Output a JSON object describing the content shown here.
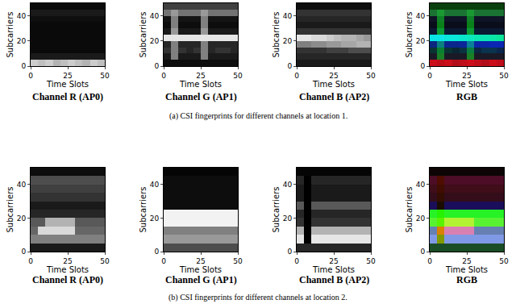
{
  "chart_data": {
    "type": "heatmap",
    "x_label": "Time Slots",
    "y_label": "Subcarriers",
    "xlim": [
      0,
      50
    ],
    "ylim": [
      0,
      50
    ],
    "xticks": [
      0,
      25,
      50
    ],
    "yticks": [
      0,
      20,
      40
    ],
    "zlim": [
      0,
      1
    ],
    "x_edges": [
      0,
      5,
      10,
      15,
      20,
      25,
      30,
      35,
      40,
      45,
      50
    ],
    "y_edges": [
      0,
      5,
      10,
      15,
      20,
      25,
      30,
      35,
      40,
      45,
      50
    ],
    "rows": [
      {
        "caption": "(a) CSI fingerprints for different channels at location 1.",
        "panels": [
          {
            "title": "Channel R (AP0)",
            "cells": [
              [
                0.8,
                0.75,
                0.8,
                0.7,
                0.75,
                0.8,
                0.75,
                0.7,
                0.8,
                0.75
              ],
              [
                0.1,
                0.1,
                0.1,
                0.1,
                0.1,
                0.1,
                0.1,
                0.1,
                0.1,
                0.1
              ],
              [
                0.04,
                0.04,
                0.04,
                0.04,
                0.04,
                0.04,
                0.04,
                0.04,
                0.04,
                0.04
              ],
              [
                0.04,
                0.04,
                0.04,
                0.04,
                0.04,
                0.04,
                0.04,
                0.04,
                0.04,
                0.04
              ],
              [
                0.04,
                0.04,
                0.04,
                0.04,
                0.04,
                0.04,
                0.04,
                0.04,
                0.04,
                0.04
              ],
              [
                0.04,
                0.04,
                0.04,
                0.04,
                0.04,
                0.04,
                0.04,
                0.04,
                0.04,
                0.04
              ],
              [
                0.04,
                0.04,
                0.04,
                0.04,
                0.04,
                0.04,
                0.04,
                0.04,
                0.04,
                0.04
              ],
              [
                0.06,
                0.06,
                0.06,
                0.06,
                0.06,
                0.06,
                0.06,
                0.06,
                0.06,
                0.06
              ],
              [
                0.1,
                0.1,
                0.1,
                0.1,
                0.1,
                0.1,
                0.1,
                0.1,
                0.1,
                0.1
              ],
              [
                0.04,
                0.04,
                0.04,
                0.04,
                0.04,
                0.04,
                0.04,
                0.04,
                0.04,
                0.04
              ]
            ]
          },
          {
            "title": "Channel G (AP1)",
            "cells": [
              [
                0.05,
                0.05,
                0.05,
                0.05,
                0.05,
                0.05,
                0.05,
                0.05,
                0.05,
                0.05
              ],
              [
                0.1,
                0.5,
                0.1,
                0.1,
                0.1,
                0.5,
                0.1,
                0.1,
                0.1,
                0.1
              ],
              [
                0.2,
                0.5,
                0.2,
                0.15,
                0.2,
                0.5,
                0.15,
                0.2,
                0.2,
                0.15
              ],
              [
                0.15,
                0.5,
                0.15,
                0.15,
                0.15,
                0.5,
                0.15,
                0.15,
                0.15,
                0.15
              ],
              [
                0.9,
                0.9,
                0.9,
                0.9,
                0.9,
                0.9,
                0.9,
                0.9,
                0.9,
                0.9
              ],
              [
                0.1,
                0.6,
                0.1,
                0.1,
                0.1,
                0.6,
                0.1,
                0.1,
                0.1,
                0.1
              ],
              [
                0.05,
                0.5,
                0.05,
                0.05,
                0.05,
                0.5,
                0.05,
                0.05,
                0.05,
                0.05
              ],
              [
                0.08,
                0.5,
                0.08,
                0.08,
                0.08,
                0.5,
                0.08,
                0.08,
                0.08,
                0.08
              ],
              [
                0.45,
                0.6,
                0.45,
                0.45,
                0.45,
                0.6,
                0.45,
                0.45,
                0.45,
                0.45
              ],
              [
                0.25,
                0.25,
                0.25,
                0.25,
                0.25,
                0.25,
                0.25,
                0.25,
                0.25,
                0.25
              ]
            ]
          },
          {
            "title": "Channel B (AP2)",
            "cells": [
              [
                0.1,
                0.1,
                0.1,
                0.1,
                0.1,
                0.1,
                0.1,
                0.1,
                0.1,
                0.1
              ],
              [
                0.15,
                0.15,
                0.15,
                0.15,
                0.15,
                0.15,
                0.15,
                0.15,
                0.15,
                0.15
              ],
              [
                0.2,
                0.2,
                0.2,
                0.2,
                0.25,
                0.25,
                0.25,
                0.3,
                0.3,
                0.3
              ],
              [
                0.5,
                0.5,
                0.55,
                0.55,
                0.6,
                0.6,
                0.65,
                0.65,
                0.7,
                0.7
              ],
              [
                0.9,
                0.9,
                0.85,
                0.85,
                0.8,
                0.75,
                0.7,
                0.7,
                0.65,
                0.6
              ],
              [
                0.2,
                0.2,
                0.2,
                0.2,
                0.2,
                0.2,
                0.2,
                0.2,
                0.2,
                0.2
              ],
              [
                0.1,
                0.1,
                0.1,
                0.1,
                0.1,
                0.1,
                0.1,
                0.1,
                0.1,
                0.1
              ],
              [
                0.15,
                0.15,
                0.15,
                0.15,
                0.15,
                0.15,
                0.15,
                0.15,
                0.15,
                0.15
              ],
              [
                0.2,
                0.2,
                0.2,
                0.2,
                0.2,
                0.2,
                0.2,
                0.2,
                0.2,
                0.2
              ],
              [
                0.05,
                0.05,
                0.05,
                0.05,
                0.05,
                0.05,
                0.05,
                0.05,
                0.05,
                0.05
              ]
            ]
          },
          {
            "title": "RGB",
            "type": "rgb"
          }
        ]
      },
      {
        "caption": "(b) CSI fingerprints for different channels at location 2.",
        "panels": [
          {
            "title": "Channel R (AP0)",
            "cells": [
              [
                0.1,
                0.1,
                0.1,
                0.1,
                0.1,
                0.1,
                0.1,
                0.1,
                0.1,
                0.1
              ],
              [
                0.5,
                0.5,
                0.5,
                0.5,
                0.5,
                0.5,
                0.5,
                0.5,
                0.5,
                0.5
              ],
              [
                0.4,
                0.85,
                0.85,
                0.85,
                0.85,
                0.85,
                0.4,
                0.4,
                0.4,
                0.4
              ],
              [
                0.35,
                0.35,
                0.7,
                0.7,
                0.7,
                0.7,
                0.35,
                0.35,
                0.35,
                0.35
              ],
              [
                0.15,
                0.15,
                0.15,
                0.15,
                0.15,
                0.15,
                0.15,
                0.15,
                0.15,
                0.15
              ],
              [
                0.1,
                0.1,
                0.1,
                0.1,
                0.1,
                0.1,
                0.1,
                0.1,
                0.1,
                0.1
              ],
              [
                0.2,
                0.2,
                0.2,
                0.2,
                0.2,
                0.2,
                0.2,
                0.2,
                0.2,
                0.2
              ],
              [
                0.25,
                0.25,
                0.25,
                0.25,
                0.25,
                0.25,
                0.25,
                0.25,
                0.25,
                0.25
              ],
              [
                0.3,
                0.3,
                0.3,
                0.3,
                0.3,
                0.3,
                0.3,
                0.3,
                0.3,
                0.3
              ],
              [
                0.05,
                0.05,
                0.05,
                0.05,
                0.05,
                0.05,
                0.05,
                0.05,
                0.05,
                0.05
              ]
            ]
          },
          {
            "title": "Channel G (AP1)",
            "cells": [
              [
                0.3,
                0.3,
                0.3,
                0.3,
                0.3,
                0.3,
                0.3,
                0.3,
                0.3,
                0.3
              ],
              [
                0.6,
                0.6,
                0.6,
                0.6,
                0.6,
                0.6,
                0.6,
                0.6,
                0.6,
                0.6
              ],
              [
                0.5,
                0.5,
                0.5,
                0.5,
                0.5,
                0.5,
                0.5,
                0.5,
                0.5,
                0.5
              ],
              [
                0.95,
                0.95,
                0.95,
                0.95,
                0.95,
                0.95,
                0.95,
                0.95,
                0.95,
                0.95
              ],
              [
                0.95,
                0.95,
                0.95,
                0.95,
                0.95,
                0.95,
                0.95,
                0.95,
                0.95,
                0.95
              ],
              [
                0.05,
                0.05,
                0.05,
                0.05,
                0.05,
                0.05,
                0.05,
                0.05,
                0.05,
                0.05
              ],
              [
                0.05,
                0.05,
                0.05,
                0.05,
                0.05,
                0.05,
                0.05,
                0.05,
                0.05,
                0.05
              ],
              [
                0.05,
                0.05,
                0.05,
                0.05,
                0.05,
                0.05,
                0.05,
                0.05,
                0.05,
                0.05
              ],
              [
                0.05,
                0.05,
                0.05,
                0.05,
                0.05,
                0.05,
                0.05,
                0.05,
                0.05,
                0.05
              ],
              [
                0.02,
                0.02,
                0.02,
                0.02,
                0.02,
                0.02,
                0.02,
                0.02,
                0.02,
                0.02
              ]
            ]
          },
          {
            "title": "Channel B (AP2)",
            "cells": [
              [
                0.15,
                0.15,
                0.15,
                0.15,
                0.15,
                0.15,
                0.15,
                0.15,
                0.15,
                0.15
              ],
              [
                0.9,
                0.0,
                0.9,
                0.9,
                0.9,
                0.9,
                0.9,
                0.9,
                0.9,
                0.9
              ],
              [
                0.7,
                0.0,
                0.7,
                0.7,
                0.7,
                0.7,
                0.7,
                0.7,
                0.7,
                0.7
              ],
              [
                0.2,
                0.0,
                0.2,
                0.2,
                0.2,
                0.2,
                0.2,
                0.2,
                0.2,
                0.2
              ],
              [
                0.15,
                0.0,
                0.15,
                0.15,
                0.15,
                0.15,
                0.15,
                0.15,
                0.15,
                0.15
              ],
              [
                0.35,
                0.0,
                0.35,
                0.35,
                0.35,
                0.35,
                0.35,
                0.35,
                0.35,
                0.35
              ],
              [
                0.1,
                0.0,
                0.1,
                0.1,
                0.1,
                0.1,
                0.1,
                0.1,
                0.1,
                0.1
              ],
              [
                0.1,
                0.0,
                0.1,
                0.1,
                0.1,
                0.1,
                0.1,
                0.1,
                0.1,
                0.1
              ],
              [
                0.15,
                0.0,
                0.15,
                0.15,
                0.15,
                0.15,
                0.15,
                0.15,
                0.15,
                0.15
              ],
              [
                0.02,
                0.02,
                0.02,
                0.02,
                0.02,
                0.02,
                0.02,
                0.02,
                0.02,
                0.02
              ]
            ]
          },
          {
            "title": "RGB",
            "type": "rgb"
          }
        ]
      }
    ]
  }
}
